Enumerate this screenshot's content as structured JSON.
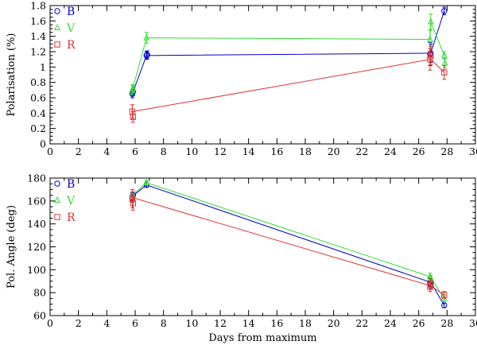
{
  "chart_data": [
    {
      "type": "scatter",
      "ylabel": "Polarisation (%)",
      "xlim": [
        0,
        30
      ],
      "ylim": [
        0,
        1.8
      ],
      "xticks": [
        0,
        2,
        4,
        6,
        8,
        10,
        12,
        14,
        16,
        18,
        20,
        22,
        24,
        26,
        28,
        30
      ],
      "yticks": [
        0,
        0.2,
        0.4,
        0.6,
        0.8,
        1,
        1.2,
        1.4,
        1.6,
        1.8
      ],
      "ytick_labels": [
        "0",
        "0.2",
        "0.4",
        "0.6",
        "0.8",
        "1",
        "1.2",
        "1.4",
        "1.6",
        "1.8"
      ],
      "legend_position": "top-left",
      "series": [
        {
          "name": "B",
          "color": "#0000cc",
          "marker": "circle",
          "points": [
            {
              "x": 5.8,
              "y": 0.65,
              "err": 0.05
            },
            {
              "x": 5.85,
              "y": 0.68,
              "err": 0.05
            },
            {
              "x": 6.8,
              "y": 1.15,
              "err": 0.05
            },
            {
              "x": 6.85,
              "y": 1.16,
              "err": 0.05
            },
            {
              "x": 26.8,
              "y": 1.17,
              "err": 0.15
            },
            {
              "x": 26.85,
              "y": 1.18,
              "err": 0.12
            },
            {
              "x": 27.8,
              "y": 1.73,
              "err": 0.05
            }
          ],
          "line": [
            [
              5.8,
              0.65
            ],
            [
              6.8,
              1.15
            ],
            [
              26.85,
              1.18
            ],
            [
              27.8,
              1.73
            ]
          ]
        },
        {
          "name": "V",
          "color": "#33dd33",
          "marker": "triangle",
          "points": [
            {
              "x": 5.8,
              "y": 0.7,
              "err": 0.06
            },
            {
              "x": 5.85,
              "y": 0.72,
              "err": 0.05
            },
            {
              "x": 6.8,
              "y": 1.38,
              "err": 0.07
            },
            {
              "x": 26.8,
              "y": 1.36,
              "err": 0.12
            },
            {
              "x": 26.85,
              "y": 1.59,
              "err": 0.1
            },
            {
              "x": 27.8,
              "y": 1.15,
              "err": 0.05
            },
            {
              "x": 27.85,
              "y": 1.05,
              "err": 0.06
            }
          ],
          "line": [
            [
              5.8,
              0.7
            ],
            [
              6.8,
              1.38
            ],
            [
              26.8,
              1.36
            ],
            [
              26.85,
              1.59
            ],
            [
              27.8,
              1.15
            ]
          ]
        },
        {
          "name": "R",
          "color": "#dd3333",
          "marker": "square",
          "points": [
            {
              "x": 5.8,
              "y": 0.42,
              "err": 0.09
            },
            {
              "x": 5.85,
              "y": 0.35,
              "err": 0.07
            },
            {
              "x": 26.8,
              "y": 1.1,
              "err": 0.14
            },
            {
              "x": 26.85,
              "y": 1.15,
              "err": 0.12
            },
            {
              "x": 27.8,
              "y": 0.93,
              "err": 0.09
            }
          ],
          "line": [
            [
              5.8,
              0.42
            ],
            [
              26.85,
              1.1
            ],
            [
              27.8,
              0.93
            ]
          ]
        }
      ]
    },
    {
      "type": "scatter",
      "xlabel": "Days from maximum",
      "ylabel": "Pol. Angle (deg)",
      "xlim": [
        0,
        30
      ],
      "ylim": [
        60,
        180
      ],
      "xticks": [
        0,
        2,
        4,
        6,
        8,
        10,
        12,
        14,
        16,
        18,
        20,
        22,
        24,
        26,
        28,
        30
      ],
      "yticks": [
        60,
        80,
        100,
        120,
        140,
        160,
        180
      ],
      "ytick_labels": [
        "60",
        "80",
        "100",
        "120",
        "140",
        "160",
        "180"
      ],
      "legend_position": "top-left",
      "series": [
        {
          "name": "B",
          "color": "#0000cc",
          "marker": "circle",
          "points": [
            {
              "x": 5.8,
              "y": 163,
              "err": 4
            },
            {
              "x": 5.85,
              "y": 165,
              "err": 3
            },
            {
              "x": 6.8,
              "y": 174,
              "err": 2
            },
            {
              "x": 26.8,
              "y": 89,
              "err": 4
            },
            {
              "x": 26.85,
              "y": 87,
              "err": 4
            },
            {
              "x": 27.8,
              "y": 69,
              "err": 2
            }
          ],
          "line": [
            [
              5.8,
              164
            ],
            [
              6.8,
              174
            ],
            [
              26.85,
              89
            ],
            [
              27.8,
              69
            ]
          ]
        },
        {
          "name": "V",
          "color": "#33dd33",
          "marker": "triangle",
          "points": [
            {
              "x": 5.8,
              "y": 165,
              "err": 3
            },
            {
              "x": 6.8,
              "y": 176,
              "err": 2
            },
            {
              "x": 26.8,
              "y": 94,
              "err": 3
            },
            {
              "x": 26.85,
              "y": 92,
              "err": 3
            },
            {
              "x": 27.8,
              "y": 75,
              "err": 3
            }
          ],
          "line": [
            [
              5.8,
              165
            ],
            [
              6.8,
              176
            ],
            [
              26.8,
              94
            ],
            [
              27.8,
              75
            ]
          ]
        },
        {
          "name": "R",
          "color": "#dd3333",
          "marker": "square",
          "points": [
            {
              "x": 5.8,
              "y": 162,
              "err": 8
            },
            {
              "x": 5.85,
              "y": 158,
              "err": 6
            },
            {
              "x": 26.8,
              "y": 85,
              "err": 4
            },
            {
              "x": 26.85,
              "y": 88,
              "err": 4
            },
            {
              "x": 27.8,
              "y": 78,
              "err": 3
            }
          ],
          "line": [
            [
              5.8,
              163
            ],
            [
              26.85,
              86
            ],
            [
              27.8,
              78
            ]
          ]
        }
      ]
    }
  ]
}
